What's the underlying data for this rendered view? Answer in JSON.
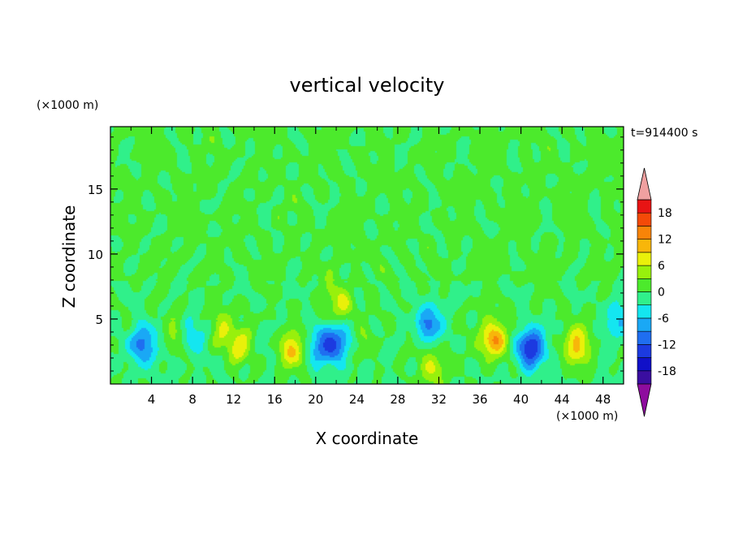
{
  "chart_data": {
    "type": "heatmap",
    "title": "vertical velocity",
    "xlabel": "X coordinate",
    "ylabel": "Z coordinate",
    "x_unit": "(×1000 m)",
    "y_unit": "(×1000 m)",
    "time_label": "t=914400 s",
    "xlim": [
      0,
      50
    ],
    "ylim": [
      0,
      19.8
    ],
    "x_ticks": [
      4,
      8,
      12,
      16,
      20,
      24,
      28,
      32,
      36,
      40,
      44,
      48
    ],
    "y_ticks": [
      5,
      10,
      15
    ],
    "colorbar": {
      "ticks": [
        18,
        12,
        6,
        0,
        -6,
        -12,
        -18
      ],
      "levels": [
        -21,
        -18,
        -15,
        -12,
        -9,
        -6,
        -3,
        0,
        3,
        6,
        9,
        12,
        15,
        18,
        21
      ],
      "colors": [
        "#8e0c9e",
        "#3a0ea0",
        "#1010c8",
        "#1c3ae0",
        "#1f6ef0",
        "#1aa8f5",
        "#14e6f0",
        "#30f08a",
        "#4cea2c",
        "#98f00c",
        "#eaf00a",
        "#f8b60a",
        "#f88408",
        "#f44a08",
        "#e81414",
        "#f0a0a0"
      ],
      "extend": "both"
    },
    "features": [
      {
        "x": 3.0,
        "z": 3.1,
        "w": -10
      },
      {
        "x": 6.2,
        "z": 4.2,
        "w": 4
      },
      {
        "x": 8.0,
        "z": 4.0,
        "w": -6
      },
      {
        "x": 10.5,
        "z": 4.3,
        "w": 6
      },
      {
        "x": 12.5,
        "z": 3.0,
        "w": 7
      },
      {
        "x": 17.6,
        "z": 2.6,
        "w": 9
      },
      {
        "x": 20.3,
        "z": 2.8,
        "w": -7
      },
      {
        "x": 22.0,
        "z": 3.3,
        "w": -11
      },
      {
        "x": 22.2,
        "z": 6.3,
        "w": 7
      },
      {
        "x": 25.0,
        "z": 3.5,
        "w": 3
      },
      {
        "x": 31.3,
        "z": 1.3,
        "w": 7
      },
      {
        "x": 31.0,
        "z": 4.8,
        "w": -9
      },
      {
        "x": 37.2,
        "z": 3.5,
        "w": 13
      },
      {
        "x": 40.8,
        "z": 2.8,
        "w": -15
      },
      {
        "x": 45.5,
        "z": 3.0,
        "w": 10
      },
      {
        "x": 49.5,
        "z": 5.0,
        "w": -6
      }
    ]
  }
}
